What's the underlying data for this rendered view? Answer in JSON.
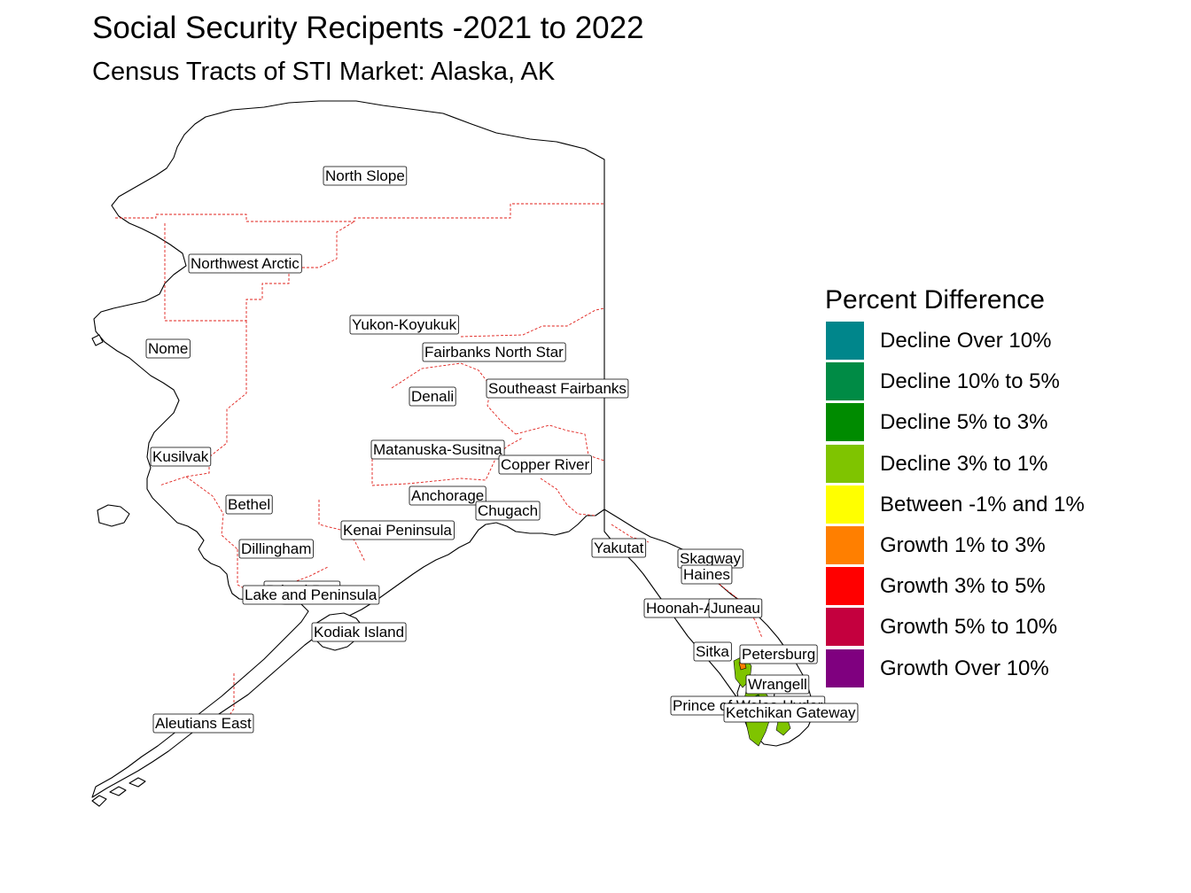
{
  "title": "Social Security Recipents -2021 to 2022",
  "subtitle": "Census Tracts of STI Market: Alaska, AK",
  "legend": {
    "title": "Percent Difference",
    "items": [
      {
        "label": "Decline Over 10%",
        "color": "#00868B"
      },
      {
        "label": "Decline 10% to 5%",
        "color": "#008B45"
      },
      {
        "label": "Decline 5% to 3%",
        "color": "#008B00"
      },
      {
        "label": "Decline 3% to 1%",
        "color": "#7FC400"
      },
      {
        "label": "Between -1% and 1%",
        "color": "#FFFF00"
      },
      {
        "label": "Growth 1% to 3%",
        "color": "#FF7F00"
      },
      {
        "label": "Growth 3% to 5%",
        "color": "#FF0000"
      },
      {
        "label": "Growth 5% to 10%",
        "color": "#C4003E"
      },
      {
        "label": "Growth Over 10%",
        "color": "#7F007F"
      }
    ]
  },
  "boundary_colors": {
    "coast": "#000000",
    "borough": "#E0201B"
  },
  "places": [
    "North Slope",
    "Northwest Arctic",
    "Yukon-Koyukuk",
    "Nome",
    "Fairbanks North Star",
    "Denali",
    "Southeast Fairbanks",
    "Matanuska-Susitna",
    "Copper River",
    "Kusilvak",
    "Anchorage",
    "Chugach",
    "Bethel",
    "Kenai Peninsula",
    "Dillingham",
    "Yakutat",
    "Skagway",
    "Haines",
    "Bristol Bay",
    "Lake and Peninsula",
    "Hoonah-Angoon",
    "Juneau",
    "Kodiak Island",
    "Sitka",
    "Petersburg",
    "Wrangell",
    "Prince of Wales-Hyder",
    "Ketchikan Gateway",
    "Aleutians East"
  ]
}
